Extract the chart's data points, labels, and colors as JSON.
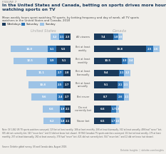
{
  "title": "In the United States and Canada, betting on sports drives more hours spent\nwatching sports on TV",
  "subtitle": "Mean weekly hours spent watching TV sports, by betting frequency and day of week, all TV sports\nwatchers in the United States and Canada, 2018",
  "figure_label": "FIGURE 7",
  "categories": [
    "All viewers",
    "Bet at least\nweekly",
    "Bet at least\nmonthly",
    "Bet at least\nbiannually",
    "Bet at least\nannually",
    "Bet never",
    "Do not\ncurrently bet",
    "Never bet"
  ],
  "us_values": [
    [
      2.3,
      2.1,
      3.2
    ],
    [
      5.5,
      3.1,
      14.0
    ],
    [
      5.1,
      3.9,
      12.5
    ],
    [
      2.8,
      2.7,
      11.1
    ],
    [
      2.7,
      2.5,
      10.8
    ],
    [
      2.7,
      2.4,
      9.6
    ],
    [
      2.1,
      1.9,
      6.6
    ],
    [
      2.1,
      1.8,
      6.2
    ]
  ],
  "ca_values": [
    [
      7.4,
      1.8,
      1.6
    ],
    [
      19.8,
      2.5,
      2.6
    ],
    [
      10.5,
      2.3,
      2.4
    ],
    [
      9.4,
      2.1,
      2.2
    ],
    [
      9.1,
      2.1,
      2.1
    ],
    [
      8.7,
      2.6,
      2.1
    ],
    [
      6.6,
      1.7,
      1.3
    ],
    [
      6.5,
      1.7,
      1.6
    ]
  ],
  "colors": [
    "#1a3a5c",
    "#2e75b6",
    "#9dc3e6"
  ],
  "legend_labels": [
    "Weekdays",
    "Saturday",
    "Sunday"
  ],
  "us_label": "United States",
  "ca_label": "Canada",
  "note": "Note: Of 1,062 US TV sports watchers surveyed, 129 bet at least weekly, 186 at least monthly, 266 at least biannually, 362 at least annually, 486 had \"never\" bet, 655 did not currently bet, 543 \"never bet,\" and 13 did not know (not shown). Of 964 Canadian TV sports watchers surveyed, 111 bet at least weekly, 175 at least monthly, 257 at least biannually, 260 at least annually, 378 had \"never\" bet, 621 did not currently bet, 534 \"never bet,\" and 12 did not know (not shown).",
  "source": "Source: Deloitte global survey, US and Canada data, August 2018.",
  "deloitte_label": "Deloitte Insights  |  deloitte.com/insights",
  "bg_color": "#f0eeea"
}
